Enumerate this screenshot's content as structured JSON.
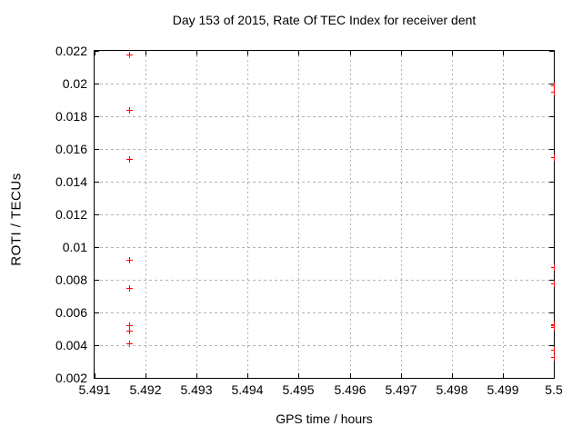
{
  "window": {
    "background": "#ffffff",
    "text_color": "#000000"
  },
  "chart_data": {
    "type": "scatter",
    "title": "Day 153 of 2015, Rate Of TEC Index for receiver dent",
    "xlabel": "GPS time / hours",
    "ylabel": "ROTI / TECUs",
    "xlim": [
      5.491,
      5.5
    ],
    "ylim": [
      0.002,
      0.022
    ],
    "grid": true,
    "legend": "none",
    "axis_color": "#000000",
    "grid_color": "#b3b3b3",
    "marker": {
      "style": "plus",
      "color": "#ff0000",
      "size": 7
    },
    "xticks": [
      {
        "v": 5.491,
        "label": "5.491"
      },
      {
        "v": 5.492,
        "label": "5.492"
      },
      {
        "v": 5.493,
        "label": "5.493"
      },
      {
        "v": 5.494,
        "label": "5.494"
      },
      {
        "v": 5.495,
        "label": "5.495"
      },
      {
        "v": 5.496,
        "label": "5.496"
      },
      {
        "v": 5.497,
        "label": "5.497"
      },
      {
        "v": 5.498,
        "label": "5.498"
      },
      {
        "v": 5.499,
        "label": "5.499"
      },
      {
        "v": 5.5,
        "label": "5.5"
      }
    ],
    "yticks": [
      {
        "v": 0.002,
        "label": "0.002"
      },
      {
        "v": 0.004,
        "label": "0.004"
      },
      {
        "v": 0.006,
        "label": "0.006"
      },
      {
        "v": 0.008,
        "label": "0.008"
      },
      {
        "v": 0.01,
        "label": "0.01"
      },
      {
        "v": 0.012,
        "label": "0.012"
      },
      {
        "v": 0.014,
        "label": "0.014"
      },
      {
        "v": 0.016,
        "label": "0.016"
      },
      {
        "v": 0.018,
        "label": "0.018"
      },
      {
        "v": 0.02,
        "label": "0.02"
      },
      {
        "v": 0.022,
        "label": "0.022"
      }
    ],
    "series": [
      {
        "name": "ROTI",
        "points": [
          [
            5.49167,
            0.0218
          ],
          [
            5.49167,
            0.0184
          ],
          [
            5.49167,
            0.0154
          ],
          [
            5.49167,
            0.0092
          ],
          [
            5.49167,
            0.0075
          ],
          [
            5.49167,
            0.0052
          ],
          [
            5.49167,
            0.0049
          ],
          [
            5.49167,
            0.0041
          ],
          [
            5.5,
            0.0199
          ],
          [
            5.5,
            0.0195
          ],
          [
            5.5,
            0.0155
          ],
          [
            5.5,
            0.0088
          ],
          [
            5.5,
            0.0078
          ],
          [
            5.5,
            0.0053
          ],
          [
            5.5,
            0.0052
          ],
          [
            5.5,
            0.0051
          ],
          [
            5.5,
            0.0037
          ],
          [
            5.5,
            0.0033
          ]
        ]
      }
    ]
  }
}
